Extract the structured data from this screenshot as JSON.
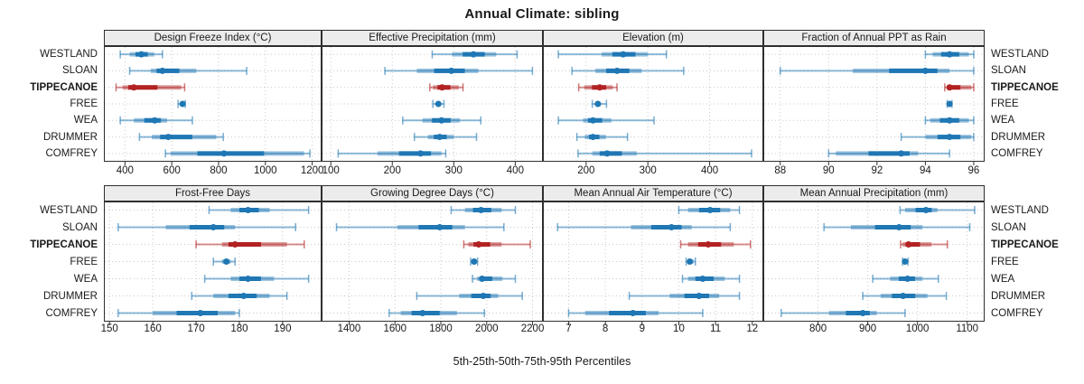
{
  "title": "Annual Climate: sibling",
  "chart_data": {
    "type": "dot-whisker-trellis",
    "title": "Annual Climate: sibling",
    "x_caption": "5th-25th-50th-75th-95th Percentiles",
    "percentiles": [
      "5th",
      "25th",
      "50th",
      "75th",
      "95th"
    ],
    "categories": [
      "WESTLAND",
      "SLOAN",
      "TIPPECANOE",
      "FREE",
      "WEA",
      "DRUMMER",
      "COMFREY"
    ],
    "highlight_category": "TIPPECANOE",
    "grid": true,
    "legend_position": "none",
    "colors": {
      "normal": "#1f77b4",
      "highlight": "#b22222",
      "gridline": "#c9c9c9",
      "header_bg": "#ececec",
      "border": "#2f2f2f",
      "text": "#1a1a1a"
    },
    "rows": [
      {
        "panels": [
          {
            "title": "Design Freeze Index (°C)",
            "xlim": [
              310,
              1240
            ],
            "ticks": [
              400,
              600,
              800,
              1000,
              1200
            ],
            "values": [
              [
                380,
                420,
                470,
                525,
                560
              ],
              [
                420,
                510,
                560,
                705,
                920
              ],
              [
                362,
                390,
                438,
                640,
                655
              ],
              [
                627,
                638,
                646,
                653,
                658
              ],
              [
                380,
                438,
                527,
                580,
                688
              ],
              [
                462,
                515,
                585,
                790,
                820
              ],
              [
                573,
                596,
                823,
                1165,
                1190
              ]
            ]
          },
          {
            "title": "Effective Precipitation (mm)",
            "xlim": [
              85,
              445
            ],
            "ticks": [
              100,
              200,
              300,
              400
            ],
            "values": [
              [
                265,
                297,
                332,
                369,
                403
              ],
              [
                188,
                240,
                296,
                340,
                428
              ],
              [
                261,
                266,
                281,
                308,
                315
              ],
              [
                266,
                271,
                275,
                279,
                284
              ],
              [
                217,
                249,
                280,
                310,
                344
              ],
              [
                236,
                258,
                277,
                300,
                337
              ],
              [
                112,
                176,
                246,
                280,
                287
              ]
            ]
          },
          {
            "title": "Elevation (m)",
            "xlim": [
              130,
              487
            ],
            "ticks": [
              200,
              300,
              400
            ],
            "values": [
              [
                155,
                225,
                260,
                300,
                330
              ],
              [
                177,
                215,
                250,
                290,
                358
              ],
              [
                188,
                197,
                222,
                243,
                250
              ],
              [
                210,
                215,
                219,
                224,
                233
              ],
              [
                155,
                195,
                211,
                241,
                310
              ],
              [
                185,
                198,
                211,
                232,
                267
              ],
              [
                187,
                210,
                234,
                282,
                468
              ]
            ]
          },
          {
            "title": "Fraction of Annual PPT as Rain",
            "xlim": [
              87.3,
              96.45
            ],
            "ticks": [
              88,
              90,
              92,
              94,
              96
            ],
            "values": [
              [
                94,
                94.3,
                95,
                95.8,
                96
              ],
              [
                88,
                91,
                94,
                95,
                96
              ],
              [
                94.8,
                94.9,
                95,
                95.9,
                96
              ],
              [
                94.9,
                95,
                95,
                95,
                95.1
              ],
              [
                94,
                94.2,
                95,
                95.8,
                96
              ],
              [
                93,
                94,
                95,
                95.9,
                96
              ],
              [
                90,
                90.3,
                93,
                93.7,
                95
              ]
            ]
          }
        ]
      },
      {
        "panels": [
          {
            "title": "Frost-Free Days",
            "xlim": [
              148.7,
              199
            ],
            "ticks": [
              150,
              160,
              170,
              180,
              190
            ],
            "values": [
              [
                173,
                178,
                182,
                187,
                196
              ],
              [
                152,
                163,
                174,
                179,
                193
              ],
              [
                170,
                176,
                179,
                191,
                195
              ],
              [
                174,
                176,
                177,
                178,
                179
              ],
              [
                172,
                178,
                182,
                188,
                196
              ],
              [
                169,
                174,
                181,
                187,
                191
              ],
              [
                152,
                160,
                171,
                179,
                180
              ]
            ]
          },
          {
            "title": "Growing Degree Days (°C)",
            "xlim": [
              1280,
              2245
            ],
            "ticks": [
              1400,
              1600,
              1800,
              2000,
              2200
            ],
            "values": [
              [
                1845,
                1905,
                1975,
                2065,
                2125
              ],
              [
                1345,
                1610,
                1795,
                1905,
                2075
              ],
              [
                1900,
                1920,
                1965,
                2065,
                2190
              ],
              [
                1930,
                1940,
                1945,
                1955,
                1960
              ],
              [
                1938,
                1958,
                1980,
                2068,
                2125
              ],
              [
                1695,
                1880,
                1985,
                2050,
                2155
              ],
              [
                1575,
                1625,
                1720,
                1870,
                1990
              ]
            ]
          },
          {
            "title": "Mean Annual Air Temperature (°C)",
            "xlim": [
              6.3,
              12.3
            ],
            "ticks": [
              7,
              8,
              9,
              10,
              11,
              12
            ],
            "values": [
              [
                10.0,
                10.25,
                10.85,
                11.4,
                11.65
              ],
              [
                6.7,
                8.7,
                9.8,
                10.35,
                11.4
              ],
              [
                10.05,
                10.25,
                10.8,
                11.5,
                11.95
              ],
              [
                10.2,
                10.25,
                10.3,
                10.4,
                10.45
              ],
              [
                10.1,
                10.25,
                10.65,
                11.25,
                11.65
              ],
              [
                8.65,
                9.75,
                10.55,
                11.1,
                11.65
              ],
              [
                7.0,
                7.45,
                8.75,
                9.45,
                10.65
              ]
            ]
          },
          {
            "title": "Mean Annual Precipitation (mm)",
            "xlim": [
              690,
              1135
            ],
            "ticks": [
              800,
              900,
              1000,
              1100
            ],
            "values": [
              [
                965,
                975,
                1017,
                1040,
                1115
              ],
              [
                812,
                866,
                963,
                1010,
                1105
              ],
              [
                966,
                970,
                982,
                1028,
                1060
              ],
              [
                970,
                973,
                975,
                978,
                981
              ],
              [
                910,
                945,
                980,
                1010,
                1042
              ],
              [
                890,
                926,
                971,
                1020,
                1058
              ],
              [
                726,
                822,
                890,
                918,
                975
              ]
            ]
          }
        ]
      }
    ]
  }
}
